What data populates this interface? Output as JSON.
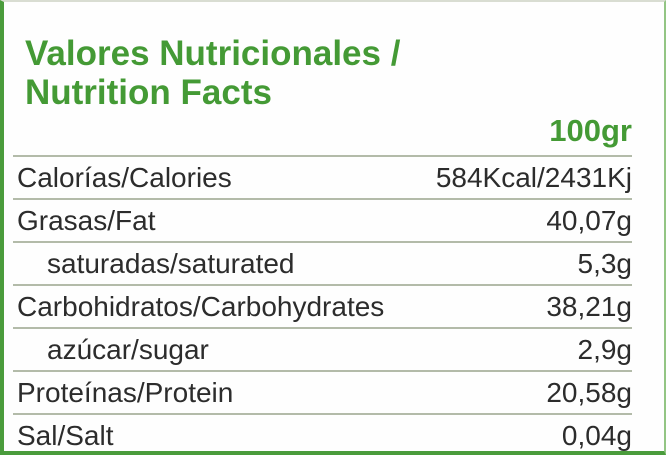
{
  "label": {
    "title_line1": "Valores Nutricionales /",
    "title_line2": "Nutrition Facts",
    "serving": "100gr",
    "rows": [
      {
        "name": "Calorías/Calories",
        "value": "584Kcal/2431Kj",
        "indent": false
      },
      {
        "name": "Grasas/Fat",
        "value": "40,07g",
        "indent": false
      },
      {
        "name": "saturadas/saturated",
        "value": "5,3g",
        "indent": true
      },
      {
        "name": "Carbohidratos/Carbohydrates",
        "value": "38,21g",
        "indent": false
      },
      {
        "name": "azúcar/sugar",
        "value": "2,9g",
        "indent": true
      },
      {
        "name": "Proteínas/Protein",
        "value": "20,58g",
        "indent": false
      },
      {
        "name": "Sal/Salt",
        "value": "0,04g",
        "indent": false
      }
    ],
    "colors": {
      "accent_green": "#449a35",
      "border_green": "#4a9c3c",
      "text": "#2c2c2c",
      "divider": "#b3bba9"
    }
  }
}
